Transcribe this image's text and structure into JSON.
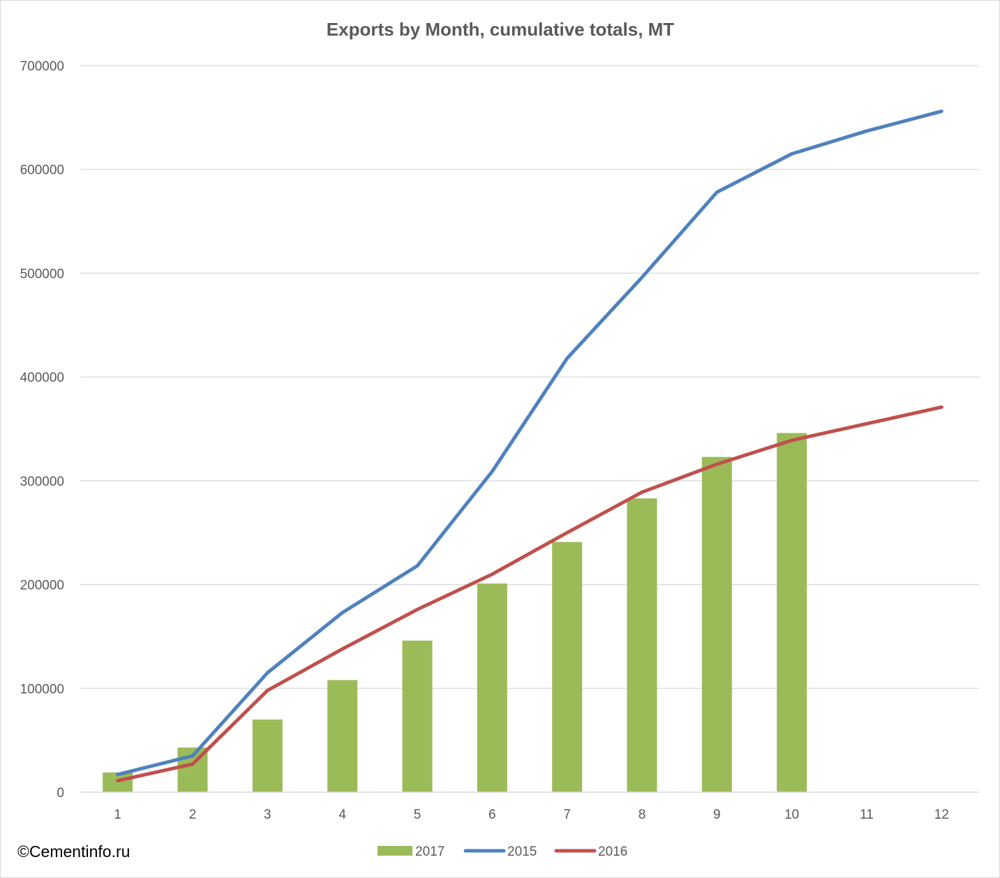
{
  "chart_data": {
    "type": "bar+line",
    "title": "Exports by Month, cumulative totals, MT",
    "categories": [
      "1",
      "2",
      "3",
      "4",
      "5",
      "6",
      "7",
      "8",
      "9",
      "10",
      "11",
      "12"
    ],
    "ylim": [
      0,
      700000
    ],
    "yticks": [
      "0",
      "100000",
      "200000",
      "300000",
      "400000",
      "500000",
      "600000",
      "700000"
    ],
    "ytick_values": [
      0,
      100000,
      200000,
      300000,
      400000,
      500000,
      600000,
      700000
    ],
    "grid": true,
    "legend_position": "bottom",
    "series": [
      {
        "name": "2017",
        "kind": "bar",
        "color": "#9bbb59",
        "values": [
          19000,
          43000,
          70000,
          108000,
          146000,
          201000,
          241000,
          283000,
          323000,
          346000,
          null,
          null
        ]
      },
      {
        "name": "2015",
        "kind": "line",
        "color": "#4f81bd",
        "values": [
          17000,
          35000,
          115000,
          173000,
          218000,
          309000,
          418000,
          496000,
          578000,
          615000,
          637000,
          656000
        ]
      },
      {
        "name": "2016",
        "kind": "line",
        "color": "#c0504d",
        "values": [
          11000,
          27000,
          98000,
          138000,
          176000,
          210000,
          250000,
          289000,
          316000,
          339000,
          355000,
          371000
        ]
      }
    ]
  },
  "credit": "©Cementinfo.ru"
}
